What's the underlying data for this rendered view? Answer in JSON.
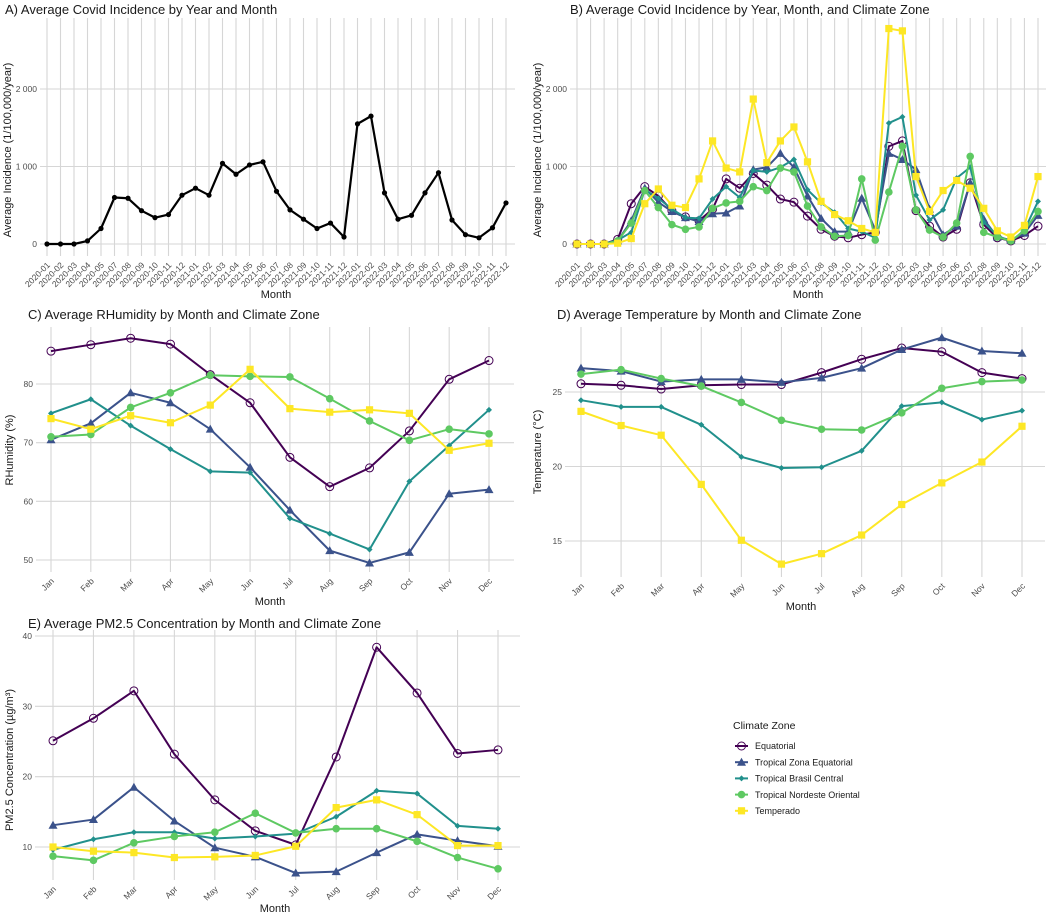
{
  "zones": [
    {
      "name": "Equatorial",
      "color": "#440154",
      "marker": "open-circle"
    },
    {
      "name": "Tropical Zona Equatorial",
      "color": "#3b528b",
      "marker": "triangle"
    },
    {
      "name": "Tropical Brasil Central",
      "color": "#21908c",
      "marker": "diamond"
    },
    {
      "name": "Tropical Nordeste Oriental",
      "color": "#5ec962",
      "marker": "circle"
    },
    {
      "name": "Temperado",
      "color": "#fde725",
      "marker": "square"
    }
  ],
  "legend": {
    "title": "Climate Zone",
    "placement": "bottom-right"
  },
  "chart_data": [
    {
      "type": "line",
      "title": "A) Average Covid Incidence by Year and Month",
      "xlabel": "Month",
      "ylabel": "Average Incidence (1/100,000/year)",
      "yticks": [
        0,
        1000,
        2000
      ],
      "ytick_labels": [
        "0",
        "1 000",
        "2 000"
      ],
      "categories": [
        "2020-01",
        "2020-02",
        "2020-03",
        "2020-04",
        "2020-05",
        "2020-07",
        "2020-08",
        "2020-09",
        "2020-10",
        "2020-11",
        "2020-12",
        "2021-01",
        "2021-02",
        "2021-03",
        "2021-04",
        "2021-05",
        "2021-06",
        "2021-07",
        "2021-08",
        "2021-09",
        "2021-10",
        "2021-11",
        "2021-12",
        "2022-01",
        "2022-02",
        "2022-03",
        "2022-04",
        "2022-05",
        "2022-06",
        "2022-07",
        "2022-08",
        "2022-09",
        "2022-10",
        "2022-11",
        "2022-12"
      ],
      "series": [
        {
          "name": "All",
          "color": "#000000",
          "values": [
            0,
            0,
            0,
            40,
            200,
            600,
            590,
            430,
            340,
            380,
            630,
            720,
            630,
            1040,
            900,
            1020,
            1060,
            680,
            440,
            320,
            200,
            270,
            90,
            1550,
            1650,
            660,
            320,
            370,
            660,
            920,
            310,
            120,
            80,
            210,
            530
          ]
        }
      ]
    },
    {
      "type": "line",
      "title": "B) Average Covid Incidence by Year, Month, and Climate Zone",
      "xlabel": "Month",
      "ylabel": "Average Incidence (1/100,000/year)",
      "yticks": [
        0,
        1000,
        2000
      ],
      "ytick_labels": [
        "0",
        "1 000",
        "2 000"
      ],
      "categories": [
        "2020-01",
        "2020-02",
        "2020-03",
        "2020-04",
        "2020-05",
        "2020-07",
        "2020-08",
        "2020-09",
        "2020-10",
        "2020-11",
        "2020-12",
        "2021-01",
        "2021-02",
        "2021-03",
        "2021-04",
        "2021-05",
        "2021-06",
        "2021-07",
        "2021-08",
        "2021-09",
        "2021-10",
        "2021-11",
        "2021-12",
        "2022-01",
        "2022-02",
        "2022-03",
        "2022-04",
        "2022-05",
        "2022-06",
        "2022-07",
        "2022-08",
        "2022-09",
        "2022-10",
        "2022-11",
        "2022-12"
      ],
      "series": [
        {
          "name": "Equatorial",
          "values": [
            0,
            0,
            0,
            60,
            520,
            740,
            620,
            430,
            350,
            300,
            450,
            840,
            720,
            910,
            760,
            580,
            540,
            360,
            190,
            100,
            80,
            120,
            150,
            1260,
            1330,
            430,
            230,
            90,
            190,
            790,
            250,
            80,
            40,
            110,
            230
          ]
        },
        {
          "name": "Tropical Zona Equatorial",
          "values": [
            0,
            0,
            0,
            40,
            300,
            720,
            540,
            420,
            340,
            290,
            390,
            400,
            490,
            960,
            990,
            1170,
            990,
            620,
            330,
            160,
            160,
            590,
            180,
            1170,
            1090,
            960,
            450,
            120,
            230,
            790,
            320,
            90,
            50,
            140,
            370
          ]
        },
        {
          "name": "Tropical Brasil Central",
          "values": [
            0,
            0,
            0,
            50,
            150,
            700,
            590,
            450,
            340,
            330,
            580,
            740,
            600,
            950,
            930,
            990,
            1090,
            700,
            530,
            410,
            200,
            160,
            80,
            1560,
            1640,
            630,
            310,
            440,
            850,
            990,
            280,
            110,
            30,
            180,
            550
          ]
        },
        {
          "name": "Tropical Nordeste Oriental",
          "values": [
            0,
            0,
            0,
            40,
            270,
            690,
            470,
            250,
            190,
            220,
            460,
            530,
            550,
            740,
            690,
            980,
            930,
            490,
            220,
            100,
            110,
            840,
            50,
            670,
            1260,
            440,
            180,
            90,
            270,
            1130,
            150,
            90,
            40,
            170,
            420
          ]
        },
        {
          "name": "Temperado",
          "values": [
            0,
            0,
            0,
            10,
            70,
            520,
            710,
            500,
            470,
            840,
            1330,
            980,
            930,
            1870,
            1050,
            1330,
            1510,
            1060,
            550,
            380,
            300,
            200,
            150,
            2780,
            2750,
            870,
            420,
            690,
            820,
            720,
            460,
            170,
            90,
            240,
            870
          ]
        }
      ]
    },
    {
      "type": "line",
      "title": "C) Average RHumidity by Month and Climate Zone",
      "xlabel": "Month",
      "ylabel": "RHumidity (%)",
      "yticks": [
        50,
        60,
        70,
        80
      ],
      "ytick_labels": [
        "50",
        "60",
        "70",
        "80"
      ],
      "categories": [
        "Jan",
        "Feb",
        "Mar",
        "Apr",
        "May",
        "Jun",
        "Jul",
        "Aug",
        "Sep",
        "Oct",
        "Nov",
        "Dec"
      ],
      "series": [
        {
          "name": "Equatorial",
          "values": [
            85.6,
            86.7,
            87.8,
            86.8,
            81.6,
            76.8,
            67.5,
            62.5,
            65.7,
            72.0,
            80.8,
            84.0
          ]
        },
        {
          "name": "Tropical Zona Equatorial",
          "values": [
            70.5,
            73.3,
            78.5,
            76.8,
            72.3,
            65.8,
            58.5,
            51.6,
            49.5,
            51.3,
            61.3,
            62.0
          ]
        },
        {
          "name": "Tropical Brasil Central",
          "values": [
            75.0,
            77.4,
            72.9,
            68.9,
            65.1,
            64.9,
            57.1,
            54.5,
            51.8,
            63.4,
            69.5,
            75.6
          ]
        },
        {
          "name": "Tropical Nordeste Oriental",
          "values": [
            71.0,
            71.4,
            76.0,
            78.5,
            81.5,
            81.3,
            81.2,
            77.5,
            73.7,
            70.4,
            72.3,
            71.5
          ]
        },
        {
          "name": "Temperado",
          "values": [
            74.1,
            72.3,
            74.6,
            73.4,
            76.4,
            82.5,
            75.8,
            75.2,
            75.6,
            75.0,
            68.7,
            69.9
          ]
        }
      ]
    },
    {
      "type": "line",
      "title": "D) Average Temperature by Month and Climate Zone",
      "xlabel": "Month",
      "ylabel": "Temperature (°C)",
      "yticks": [
        15,
        20,
        25
      ],
      "ytick_labels": [
        "15",
        "20",
        "25"
      ],
      "categories": [
        "Jan",
        "Feb",
        "Mar",
        "Apr",
        "May",
        "Jun",
        "Jul",
        "Aug",
        "Sep",
        "Oct",
        "Nov",
        "Dec"
      ],
      "series": [
        {
          "name": "Equatorial",
          "values": [
            25.55,
            25.45,
            25.2,
            25.45,
            25.5,
            25.5,
            26.3,
            27.2,
            27.95,
            27.7,
            26.3,
            25.9
          ]
        },
        {
          "name": "Tropical Zona Equatorial",
          "values": [
            26.6,
            26.4,
            25.7,
            25.85,
            25.85,
            25.65,
            25.95,
            26.6,
            27.85,
            28.65,
            27.75,
            27.6
          ]
        },
        {
          "name": "Tropical Brasil Central",
          "values": [
            24.45,
            24.0,
            24.0,
            22.8,
            20.65,
            19.9,
            19.95,
            21.05,
            24.05,
            24.3,
            23.15,
            23.75
          ]
        },
        {
          "name": "Tropical Nordeste Oriental",
          "values": [
            26.2,
            26.5,
            25.9,
            25.4,
            24.3,
            23.1,
            22.5,
            22.45,
            23.6,
            25.25,
            25.7,
            25.8
          ]
        },
        {
          "name": "Temperado",
          "values": [
            23.7,
            22.75,
            22.1,
            18.8,
            15.05,
            13.45,
            14.15,
            15.4,
            17.45,
            18.9,
            20.3,
            22.7
          ]
        }
      ]
    },
    {
      "type": "line",
      "title": "E) Average PM2.5 Concentration by Month and Climate Zone",
      "xlabel": "Month",
      "ylabel": "PM2.5 Concentration (µg/m³)",
      "yticks": [
        10,
        20,
        30,
        40
      ],
      "ytick_labels": [
        "10",
        "20",
        "30",
        "40"
      ],
      "categories": [
        "Jan",
        "Feb",
        "Mar",
        "Apr",
        "May",
        "Jun",
        "Jul",
        "Aug",
        "Sep",
        "Oct",
        "Nov",
        "Dec"
      ],
      "series": [
        {
          "name": "Equatorial",
          "values": [
            25.1,
            28.3,
            32.2,
            23.2,
            16.7,
            12.3,
            10.3,
            22.8,
            38.4,
            31.9,
            23.3,
            23.8
          ]
        },
        {
          "name": "Tropical Zona Equatorial",
          "values": [
            13.1,
            13.9,
            18.5,
            13.7,
            9.9,
            8.6,
            6.3,
            6.5,
            9.2,
            11.8,
            10.9,
            10.1
          ]
        },
        {
          "name": "Tropical Brasil Central",
          "values": [
            9.6,
            11.1,
            12.1,
            12.1,
            11.2,
            11.5,
            11.9,
            14.3,
            18.0,
            17.6,
            13.0,
            12.6
          ]
        },
        {
          "name": "Tropical Nordeste Oriental",
          "values": [
            8.7,
            8.1,
            10.6,
            11.5,
            12.1,
            14.8,
            12.0,
            12.6,
            12.6,
            10.8,
            8.5,
            6.9
          ]
        },
        {
          "name": "Temperado",
          "values": [
            10.0,
            9.4,
            9.2,
            8.5,
            8.6,
            8.8,
            10.1,
            15.6,
            16.7,
            14.6,
            10.2,
            10.2
          ]
        }
      ]
    }
  ]
}
